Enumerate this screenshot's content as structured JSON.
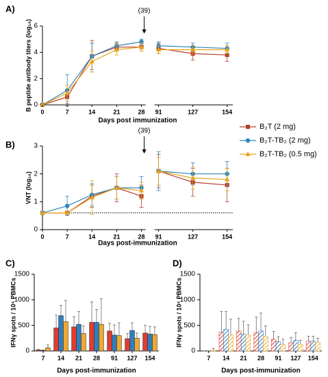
{
  "chart_data": [
    {
      "type": "line",
      "panel": "A)",
      "ylabel": "B peptide antibody titers (log₁₀)",
      "xlabel": "Days post immunization",
      "categories": [
        "0",
        "7",
        "14",
        "21",
        "28",
        "91",
        "127",
        "154"
      ],
      "break_after": "28",
      "annotation": {
        "text": "(39)",
        "at": "28"
      },
      "ylim": [
        0,
        6
      ],
      "yticks": [
        0,
        2,
        4,
        6
      ],
      "series": [
        {
          "name": "B₂T (2 mg)",
          "color": "#b5402a",
          "marker": "square",
          "values": [
            0,
            0.6,
            3.7,
            4.4,
            4.4,
            4.3,
            3.9,
            3.8
          ],
          "errors": [
            0.05,
            0.5,
            1.2,
            0.3,
            0.3,
            0.4,
            0.5,
            0.5
          ]
        },
        {
          "name": "B₂T-TB₂ (2 mg)",
          "color": "#2f86b8",
          "marker": "circle",
          "values": [
            0,
            1.1,
            3.7,
            4.5,
            4.8,
            4.5,
            4.4,
            4.3
          ],
          "errors": [
            0.05,
            1.2,
            1.0,
            0.3,
            0.2,
            0.3,
            0.3,
            0.4
          ]
        },
        {
          "name": "B₂T-TB₂ (0.5 mg)",
          "color": "#e8a317",
          "marker": "triangle",
          "values": [
            0,
            0.9,
            3.3,
            4.2,
            4.4,
            4.2,
            4.2,
            4.2
          ],
          "errors": [
            0.05,
            0.6,
            0.8,
            0.4,
            0.3,
            0.3,
            0.3,
            0.3
          ]
        }
      ]
    },
    {
      "type": "line",
      "panel": "B)",
      "ylabel": "VNT (log₁₀)",
      "xlabel": "Days post-immunization",
      "categories": [
        "0",
        "7",
        "14",
        "21",
        "28",
        "91",
        "127",
        "154"
      ],
      "break_after": "28",
      "annotation": {
        "text": "(39)",
        "at": "28"
      },
      "threshold": 0.6,
      "ylim": [
        0,
        3
      ],
      "yticks": [
        0,
        1,
        2,
        3
      ],
      "series": [
        {
          "color": "#b5402a",
          "marker": "square",
          "values": [
            0.6,
            0.6,
            1.2,
            1.5,
            1.2,
            2.1,
            1.7,
            1.6
          ],
          "errors": [
            0.02,
            0.02,
            0.4,
            0.5,
            0.4,
            0.6,
            0.5,
            0.6
          ]
        },
        {
          "color": "#2f86b8",
          "marker": "circle",
          "values": [
            0.6,
            0.85,
            1.25,
            1.5,
            1.5,
            2.1,
            2.0,
            2.0
          ],
          "errors": [
            0.02,
            0.35,
            0.4,
            0.4,
            0.4,
            0.7,
            0.4,
            0.45
          ]
        },
        {
          "color": "#e8a317",
          "marker": "triangle",
          "values": [
            0.6,
            0.6,
            1.15,
            1.5,
            1.4,
            2.1,
            1.85,
            1.8
          ],
          "errors": [
            0.02,
            0.02,
            0.6,
            0.4,
            0.3,
            0.5,
            0.4,
            0.4
          ]
        }
      ]
    },
    {
      "type": "bar",
      "panel": "C)",
      "ylabel": "IFNγ spots / 10⁶ PBMCs",
      "xlabel": "Days post-immunization",
      "categories": [
        "7",
        "14",
        "21",
        "28",
        "91",
        "127",
        "154"
      ],
      "ylim": [
        0,
        1500
      ],
      "yticks": [
        0,
        500,
        1000,
        1500
      ],
      "series": [
        {
          "color": "#e03c31",
          "values": [
            20,
            450,
            470,
            560,
            390,
            240,
            350
          ],
          "errors": [
            10,
            250,
            200,
            400,
            150,
            100,
            150
          ]
        },
        {
          "color": "#2f7fbf",
          "values": [
            10,
            690,
            520,
            560,
            310,
            400,
            330
          ],
          "errors": [
            10,
            200,
            250,
            250,
            200,
            150,
            150
          ]
        },
        {
          "color": "#f0a830",
          "values": [
            60,
            570,
            340,
            520,
            300,
            250,
            320
          ],
          "errors": [
            60,
            420,
            150,
            500,
            250,
            100,
            150
          ]
        }
      ]
    },
    {
      "type": "bar",
      "panel": "D)",
      "ylabel": "IFNγ spots / 10⁶ PBMCs",
      "xlabel": "Days post-immunization",
      "hatch": true,
      "categories": [
        "7",
        "14",
        "21",
        "28",
        "91",
        "127",
        "154"
      ],
      "ylim": [
        0,
        1500
      ],
      "yticks": [
        0,
        500,
        1000,
        1500
      ],
      "series": [
        {
          "color": "#e03c31",
          "values": [
            0,
            370,
            390,
            360,
            230,
            160,
            190
          ],
          "errors": [
            0,
            400,
            250,
            300,
            150,
            100,
            100
          ]
        },
        {
          "color": "#2f7fbf",
          "values": [
            0,
            420,
            330,
            390,
            180,
            210,
            190
          ],
          "errors": [
            0,
            350,
            250,
            350,
            100,
            150,
            100
          ]
        },
        {
          "color": "#f0a830",
          "values": [
            10,
            320,
            310,
            290,
            130,
            130,
            170
          ],
          "errors": [
            40,
            300,
            200,
            200,
            100,
            80,
            80
          ]
        }
      ]
    }
  ]
}
